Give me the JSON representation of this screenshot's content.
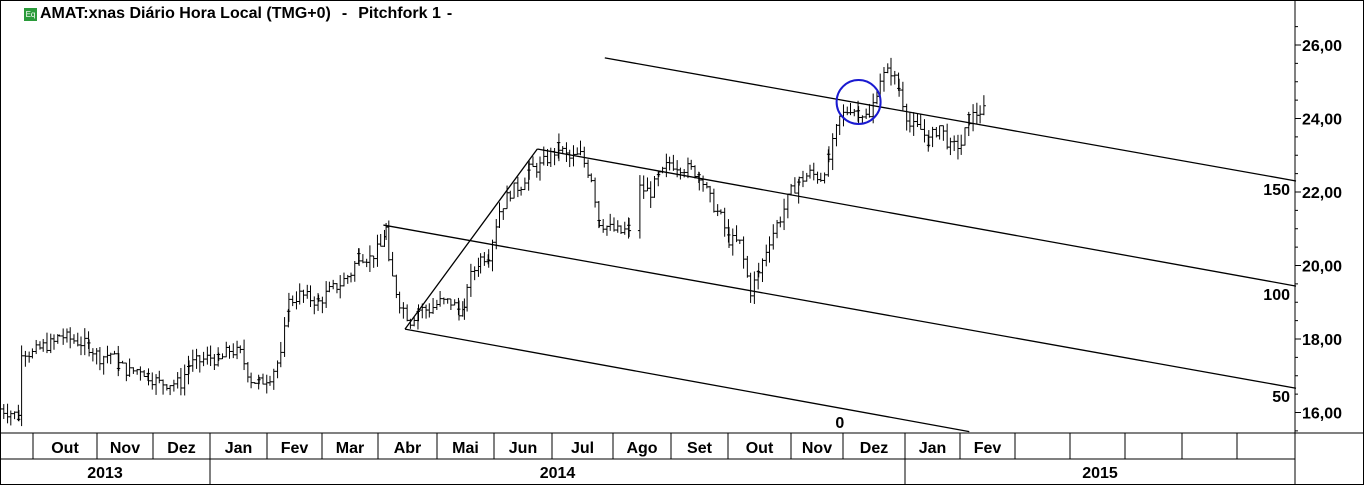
{
  "header": {
    "icon": "eq-icon",
    "icon_text": "Eq",
    "title": "AMAT:xnas Diário Hora Local (TMG+0)",
    "sep1": "-",
    "study": "Pitchfork 1",
    "sep2": "-"
  },
  "chart_data": {
    "type": "ohlc",
    "title": "AMAT:xnas Diário Hora Local (TMG+0)",
    "ylim": [
      15.2,
      27.0
    ],
    "y_ticks": [
      16,
      18,
      20,
      22,
      24,
      26
    ],
    "y_tick_labels": [
      "16,00",
      "18,00",
      "20,00",
      "22,00",
      "24,00",
      "26,00"
    ],
    "months": [
      "",
      "Out",
      "Nov",
      "Dez",
      "Jan",
      "Fev",
      "Mar",
      "Abr",
      "Mai",
      "Jun",
      "Jul",
      "Ago",
      "Set",
      "Out",
      "Nov",
      "Dez",
      "Jan",
      "Fev",
      "",
      "",
      "",
      "",
      ""
    ],
    "years": [
      "2013",
      "2014",
      "2015"
    ],
    "series": [
      [
        0,
        16.1
      ],
      [
        4,
        16.0
      ],
      [
        7,
        15.9
      ],
      [
        8,
        17.7
      ],
      [
        12,
        17.6
      ],
      [
        16,
        17.8
      ],
      [
        20,
        17.9
      ],
      [
        22,
        18.1
      ],
      [
        26,
        18.0
      ],
      [
        30,
        17.9
      ],
      [
        33,
        17.8
      ],
      [
        37,
        17.5
      ],
      [
        41,
        17.6
      ],
      [
        44,
        17.3
      ],
      [
        48,
        17.1
      ],
      [
        52,
        17.2
      ],
      [
        55,
        17.0
      ],
      [
        59,
        16.8
      ],
      [
        63,
        16.8
      ],
      [
        67,
        16.8
      ],
      [
        70,
        17.3
      ],
      [
        74,
        17.4
      ],
      [
        78,
        17.5
      ],
      [
        81,
        17.4
      ],
      [
        85,
        17.7
      ],
      [
        89,
        17.6
      ],
      [
        93,
        16.9
      ],
      [
        96,
        16.8
      ],
      [
        100,
        17.0
      ],
      [
        104,
        17.5
      ],
      [
        107,
        19.0
      ],
      [
        111,
        19.2
      ],
      [
        115,
        19.1
      ],
      [
        118,
        19.0
      ],
      [
        122,
        19.3
      ],
      [
        126,
        19.5
      ],
      [
        130,
        19.8
      ],
      [
        133,
        20.3
      ],
      [
        137,
        20.2
      ],
      [
        141,
        20.5
      ],
      [
        143,
        21.0
      ],
      [
        144,
        20.0
      ],
      [
        148,
        19.0
      ],
      [
        152,
        18.5
      ],
      [
        155,
        18.8
      ],
      [
        159,
        18.8
      ],
      [
        163,
        19.0
      ],
      [
        167,
        19.0
      ],
      [
        170,
        18.8
      ],
      [
        172,
        18.7
      ],
      [
        173,
        19.5
      ],
      [
        178,
        20.2
      ],
      [
        181,
        20.3
      ],
      [
        185,
        21.5
      ],
      [
        189,
        22.0
      ],
      [
        193,
        22.2
      ],
      [
        196,
        22.6
      ],
      [
        200,
        22.7
      ],
      [
        204,
        23.0
      ],
      [
        207,
        23.2
      ],
      [
        211,
        22.9
      ],
      [
        215,
        23.0
      ],
      [
        219,
        22.4
      ],
      [
        222,
        21.2
      ],
      [
        226,
        21.0
      ],
      [
        230,
        20.9
      ],
      [
        233,
        21.0
      ],
      [
        237,
        22.1
      ],
      [
        241,
        22.0
      ],
      [
        244,
        22.4
      ],
      [
        248,
        22.8
      ],
      [
        252,
        22.7
      ],
      [
        256,
        22.6
      ],
      [
        259,
        22.5
      ],
      [
        263,
        21.8
      ],
      [
        267,
        21.3
      ],
      [
        270,
        20.7
      ],
      [
        274,
        20.6
      ],
      [
        278,
        19.3
      ],
      [
        281,
        19.8
      ],
      [
        285,
        20.7
      ],
      [
        289,
        21.3
      ],
      [
        293,
        22.0
      ],
      [
        296,
        22.3
      ],
      [
        300,
        22.5
      ],
      [
        304,
        22.4
      ],
      [
        307,
        22.9
      ],
      [
        311,
        24.0
      ],
      [
        315,
        24.3
      ],
      [
        318,
        24.2
      ],
      [
        322,
        24.0
      ],
      [
        326,
        25.1
      ],
      [
        330,
        25.3
      ],
      [
        333,
        24.8
      ],
      [
        337,
        23.8
      ],
      [
        341,
        23.7
      ],
      [
        344,
        23.4
      ],
      [
        348,
        23.8
      ],
      [
        352,
        23.2
      ],
      [
        356,
        23.3
      ],
      [
        359,
        24.0
      ],
      [
        363,
        24.2
      ],
      [
        365,
        24.2
      ]
    ],
    "gaps": [
      [
        172,
        173
      ],
      [
        233,
        237
      ]
    ],
    "pitchfork": {
      "pivots": [
        [
          150,
          18.27
        ],
        [
          199,
          23.17
        ],
        [
          142,
          21.1
        ]
      ],
      "lines": [
        {
          "level": "150",
          "from": [
            224,
            25.65
          ],
          "to": [
            480,
            22.3
          ]
        },
        {
          "level": "100",
          "from": [
            199,
            23.17
          ],
          "to": [
            480,
            19.44
          ]
        },
        {
          "level": "50",
          "from": [
            142,
            21.1
          ],
          "to": [
            480,
            16.66
          ]
        },
        {
          "level": "0",
          "from": [
            150,
            18.27
          ],
          "to": [
            359,
            15.48
          ]
        }
      ]
    },
    "annotation": {
      "type": "circle",
      "center": [
        318,
        24.45
      ],
      "color": "#1a1ad0"
    }
  }
}
